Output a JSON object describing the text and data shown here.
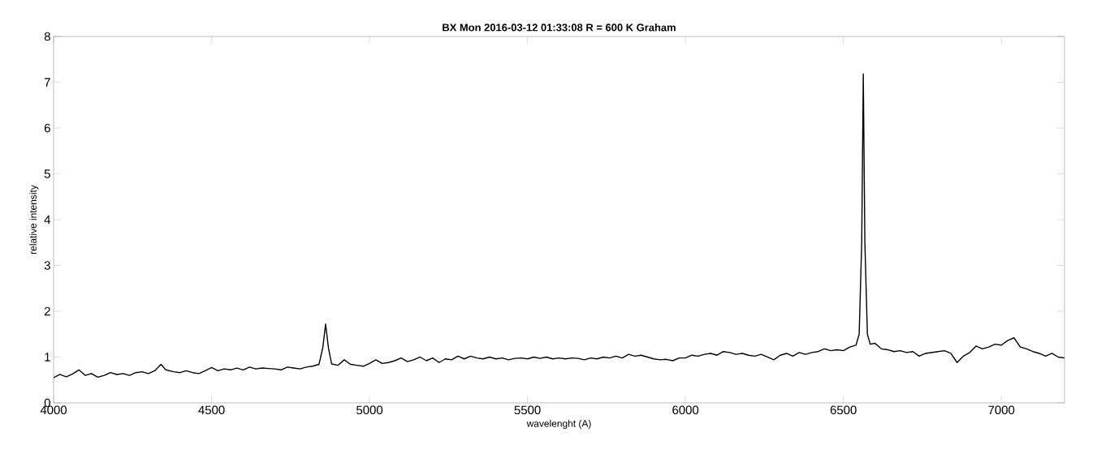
{
  "chart_data": {
    "type": "line",
    "title": "BX Mon   2016-03-12   01:33:08   R = 600   K Graham",
    "xlabel": "wavelenght (A)",
    "ylabel": "relative intensity",
    "color": "#000000",
    "x": [
      4000,
      4020,
      4040,
      4060,
      4080,
      4100,
      4120,
      4140,
      4160,
      4180,
      4200,
      4220,
      4240,
      4260,
      4280,
      4300,
      4320,
      4340,
      4355,
      4380,
      4400,
      4420,
      4440,
      4460,
      4480,
      4500,
      4520,
      4540,
      4560,
      4580,
      4600,
      4620,
      4640,
      4660,
      4680,
      4700,
      4720,
      4740,
      4760,
      4780,
      4800,
      4820,
      4840,
      4852,
      4861,
      4870,
      4880,
      4900,
      4920,
      4940,
      4960,
      4980,
      5000,
      5020,
      5040,
      5060,
      5080,
      5100,
      5120,
      5140,
      5160,
      5180,
      5200,
      5220,
      5240,
      5260,
      5280,
      5300,
      5320,
      5340,
      5360,
      5380,
      5400,
      5420,
      5440,
      5460,
      5480,
      5500,
      5520,
      5540,
      5560,
      5580,
      5600,
      5620,
      5640,
      5660,
      5680,
      5700,
      5720,
      5740,
      5760,
      5780,
      5800,
      5820,
      5840,
      5860,
      5880,
      5900,
      5920,
      5940,
      5960,
      5980,
      6000,
      6020,
      6040,
      6060,
      6080,
      6100,
      6120,
      6140,
      6160,
      6180,
      6200,
      6220,
      6240,
      6260,
      6280,
      6300,
      6320,
      6340,
      6360,
      6380,
      6400,
      6420,
      6440,
      6460,
      6480,
      6500,
      6520,
      6540,
      6550,
      6558,
      6563,
      6568,
      6576,
      6585,
      6600,
      6620,
      6640,
      6660,
      6680,
      6700,
      6720,
      6740,
      6760,
      6780,
      6800,
      6820,
      6840,
      6860,
      6880,
      6900,
      6920,
      6940,
      6960,
      6980,
      7000,
      7020,
      7040,
      7060,
      7080,
      7100,
      7120,
      7140,
      7160,
      7180,
      7200
    ],
    "values": [
      0.55,
      0.62,
      0.57,
      0.63,
      0.72,
      0.6,
      0.64,
      0.56,
      0.6,
      0.66,
      0.62,
      0.64,
      0.6,
      0.66,
      0.68,
      0.64,
      0.7,
      0.84,
      0.72,
      0.68,
      0.66,
      0.7,
      0.66,
      0.64,
      0.7,
      0.77,
      0.7,
      0.74,
      0.72,
      0.76,
      0.72,
      0.78,
      0.74,
      0.76,
      0.75,
      0.74,
      0.72,
      0.78,
      0.76,
      0.74,
      0.78,
      0.8,
      0.84,
      1.2,
      1.72,
      1.2,
      0.85,
      0.82,
      0.94,
      0.84,
      0.82,
      0.8,
      0.86,
      0.94,
      0.86,
      0.88,
      0.92,
      0.98,
      0.9,
      0.94,
      1.0,
      0.92,
      0.98,
      0.88,
      0.96,
      0.94,
      1.02,
      0.96,
      1.02,
      0.98,
      0.96,
      1.0,
      0.96,
      0.98,
      0.94,
      0.97,
      0.98,
      0.96,
      1.0,
      0.97,
      1.0,
      0.96,
      0.98,
      0.96,
      0.98,
      0.97,
      0.94,
      0.98,
      0.96,
      1.0,
      0.98,
      1.02,
      0.98,
      1.06,
      1.02,
      1.04,
      1.0,
      0.96,
      0.94,
      0.95,
      0.92,
      0.98,
      0.98,
      1.04,
      1.02,
      1.06,
      1.08,
      1.04,
      1.12,
      1.1,
      1.06,
      1.08,
      1.04,
      1.02,
      1.06,
      1.0,
      0.94,
      1.04,
      1.08,
      1.02,
      1.1,
      1.06,
      1.1,
      1.12,
      1.18,
      1.14,
      1.16,
      1.14,
      1.22,
      1.26,
      1.5,
      3.5,
      7.18,
      3.5,
      1.5,
      1.28,
      1.3,
      1.18,
      1.16,
      1.12,
      1.14,
      1.1,
      1.12,
      1.02,
      1.08,
      1.1,
      1.12,
      1.14,
      1.08,
      0.88,
      1.02,
      1.1,
      1.24,
      1.18,
      1.22,
      1.28,
      1.26,
      1.36,
      1.42,
      1.22,
      1.18,
      1.12,
      1.08,
      1.02,
      1.08,
      1.0,
      0.98
    ],
    "xlim": [
      4000,
      7200
    ],
    "ylim": [
      0,
      8
    ],
    "xticks": [
      4000,
      4500,
      5000,
      5500,
      6000,
      6500,
      7000
    ],
    "yticks": [
      0,
      1,
      2,
      3,
      4,
      5,
      6,
      7,
      8
    ]
  }
}
